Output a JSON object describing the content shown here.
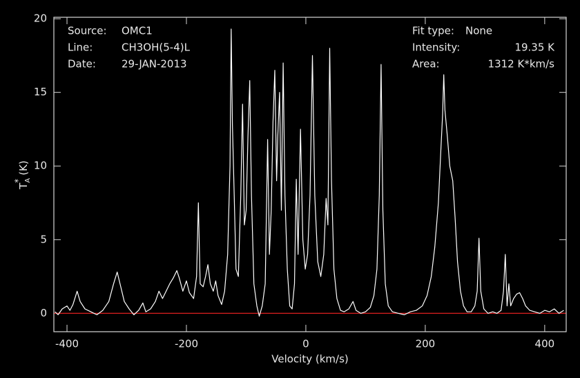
{
  "chart_data": {
    "type": "line",
    "xlabel": "Velocity (km/s)",
    "ylabel_parts": [
      "T",
      "A",
      "*",
      "(K)"
    ],
    "annotations_left": [
      {
        "label": "Source:",
        "value": "OMC1"
      },
      {
        "label": "Line:",
        "value": "CH3OH(5-4)L"
      },
      {
        "label": "Date:",
        "value": "29-JAN-2013"
      }
    ],
    "annotations_right": [
      {
        "label": "Fit type:",
        "value": "None"
      },
      {
        "label": "Intensity:",
        "value": "19.35 K"
      },
      {
        "label": "Area:",
        "value": "1312 K*km/s"
      }
    ],
    "xlim": [
      -422,
      436
    ],
    "ylim": [
      -1.25,
      20.1
    ],
    "xticks": [
      -400,
      -200,
      0,
      200,
      400
    ],
    "yticks": [
      0,
      5,
      10,
      15,
      20
    ],
    "baseline": 0,
    "baseline_color": "#e02020",
    "series": [
      {
        "color": "#ffffff",
        "x": [
          -420,
          -415,
          -408,
          -400,
          -395,
          -390,
          -383,
          -378,
          -370,
          -360,
          -350,
          -340,
          -330,
          -322,
          -316,
          -310,
          -304,
          -296,
          -288,
          -280,
          -273,
          -268,
          -260,
          -252,
          -246,
          -240,
          -234,
          -228,
          -222,
          -216,
          -212,
          -206,
          -200,
          -195,
          -188,
          -183,
          -180,
          -177,
          -172,
          -168,
          -164,
          -160,
          -155,
          -151,
          -147,
          -141,
          -136,
          -131,
          -127,
          -125,
          -123,
          -120,
          -117,
          -113,
          -109,
          -106,
          -103,
          -100,
          -97,
          -94,
          -91,
          -87,
          -82,
          -78,
          -73,
          -68,
          -64,
          -61,
          -58,
          -55,
          -52,
          -49,
          -47,
          -44,
          -41,
          -38,
          -35,
          -31,
          -27,
          -23,
          -19,
          -16,
          -13,
          -9,
          -5,
          -1,
          3,
          7,
          11,
          15,
          20,
          25,
          30,
          34,
          37,
          40,
          43,
          47,
          52,
          58,
          64,
          72,
          79,
          84,
          92,
          100,
          108,
          114,
          119,
          123,
          126,
          129,
          133,
          138,
          145,
          155,
          165,
          175,
          185,
          195,
          203,
          210,
          216,
          222,
          226,
          229,
          231,
          233,
          237,
          241,
          246,
          250,
          254,
          259,
          264,
          270,
          277,
          283,
          287,
          290,
          293,
          298,
          305,
          313,
          320,
          327,
          331,
          334,
          337,
          340,
          343,
          348,
          353,
          358,
          363,
          368,
          375,
          383,
          392,
          400,
          408,
          416,
          424,
          432
        ],
        "values": [
          0.1,
          -0.1,
          0.3,
          0.5,
          0.2,
          0.6,
          1.5,
          0.8,
          0.3,
          0.1,
          -0.1,
          0.2,
          0.8,
          2.0,
          2.8,
          1.8,
          0.8,
          0.3,
          -0.1,
          0.2,
          0.7,
          0.1,
          0.3,
          0.8,
          1.5,
          1.0,
          1.5,
          2.0,
          2.4,
          2.9,
          2.4,
          1.5,
          2.2,
          1.4,
          1.0,
          2.5,
          7.5,
          2.0,
          1.8,
          2.5,
          3.3,
          2.0,
          1.5,
          2.2,
          1.2,
          0.6,
          1.5,
          4.0,
          10,
          19.3,
          12.8,
          8,
          3,
          2.5,
          8,
          14.2,
          6,
          7,
          12,
          15.8,
          8,
          2,
          0.5,
          -0.2,
          0.5,
          2,
          11.8,
          4,
          7,
          13,
          16.5,
          9,
          12,
          15,
          7,
          17,
          8,
          3,
          0.5,
          0.3,
          2,
          9.1,
          4,
          12.5,
          5,
          3,
          4,
          8,
          17.5,
          8,
          3.5,
          2.5,
          4,
          7.8,
          6,
          18,
          9,
          3,
          1,
          0.2,
          0.1,
          0.3,
          0.8,
          0.2,
          0.0,
          0.1,
          0.4,
          1.2,
          3,
          8,
          16.9,
          7,
          2,
          0.5,
          0.1,
          0.0,
          -0.1,
          0.1,
          0.2,
          0.5,
          1.2,
          2.5,
          4.5,
          7.5,
          11,
          13.5,
          16.2,
          13.8,
          12,
          10,
          9,
          6.5,
          3.5,
          1.5,
          0.5,
          0.1,
          0.1,
          0.5,
          1.5,
          5.1,
          1.5,
          0.3,
          0.0,
          0.1,
          0.0,
          0.2,
          1.5,
          4.0,
          0.5,
          2.0,
          0.5,
          1.0,
          1.3,
          1.4,
          1.0,
          0.5,
          0.2,
          0.1,
          0.0,
          0.2,
          0.1,
          0.3,
          0.0,
          0.2
        ]
      }
    ]
  }
}
